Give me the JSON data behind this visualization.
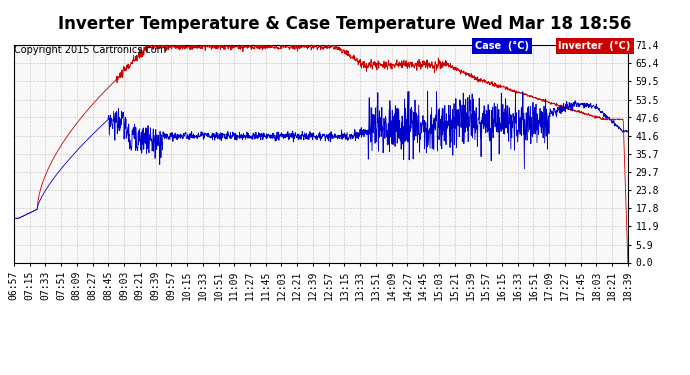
{
  "title": "Inverter Temperature & Case Temperature Wed Mar 18 18:56",
  "copyright": "Copyright 2015 Cartronics.com",
  "yticks": [
    0.0,
    5.9,
    11.9,
    17.8,
    23.8,
    29.7,
    35.7,
    41.6,
    47.6,
    53.5,
    59.5,
    65.4,
    71.4
  ],
  "ylim": [
    0.0,
    71.4
  ],
  "background_color": "#ffffff",
  "plot_bg_color": "#f8f8f8",
  "grid_color": "#cccccc",
  "legend_case_label": "Case  (°C)",
  "legend_inverter_label": "Inverter  (°C)",
  "case_color": "#0000cc",
  "inverter_color": "#cc0000",
  "title_fontsize": 12,
  "tick_fontsize": 7,
  "copyright_fontsize": 7,
  "xtick_labels": [
    "06:57",
    "07:15",
    "07:33",
    "07:51",
    "08:09",
    "08:27",
    "08:45",
    "09:03",
    "09:21",
    "09:39",
    "09:57",
    "10:15",
    "10:33",
    "10:51",
    "11:09",
    "11:27",
    "11:45",
    "12:03",
    "12:21",
    "12:39",
    "12:57",
    "13:15",
    "13:33",
    "13:51",
    "14:09",
    "14:27",
    "14:45",
    "15:03",
    "15:21",
    "15:39",
    "15:57",
    "16:15",
    "16:33",
    "16:51",
    "17:09",
    "17:27",
    "17:45",
    "18:03",
    "18:21",
    "18:39"
  ]
}
